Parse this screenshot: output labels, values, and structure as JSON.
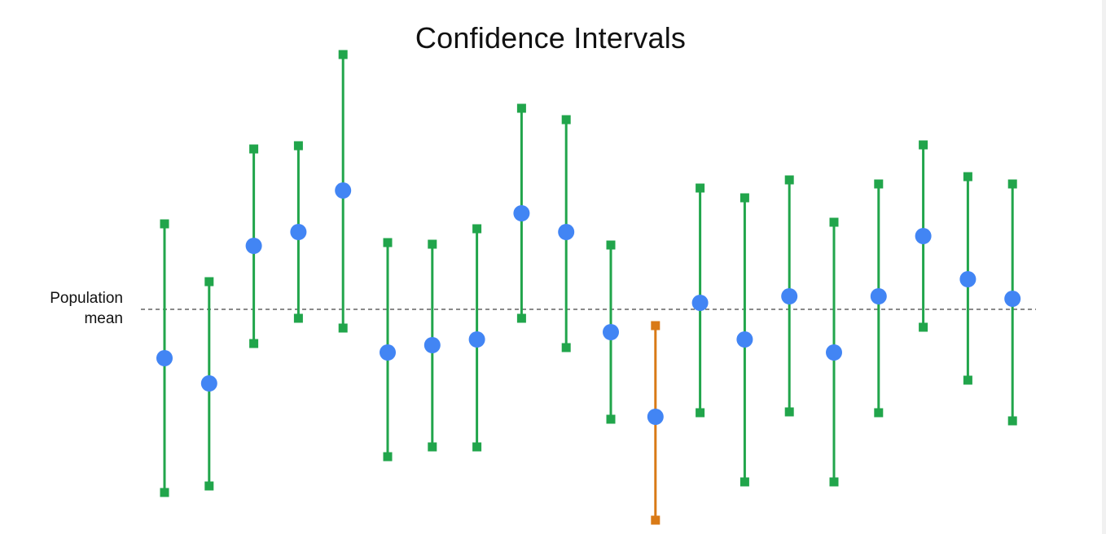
{
  "chart_data": {
    "type": "scatter",
    "title": "Confidence Intervals",
    "xlabel": "",
    "ylabel": "",
    "reference_line": {
      "label_line1": "Population",
      "label_line2": "mean",
      "value": 0,
      "style": "dashed",
      "color": "#444444"
    },
    "grid": false,
    "legend": "none",
    "colors": {
      "interval": "#21a54b",
      "interval_miss": "#d97a17",
      "point": "#4285f4"
    },
    "samples": [
      {
        "estimate": -0.6,
        "lower": -2.25,
        "upper": 1.05,
        "contains_mean": true
      },
      {
        "estimate": -0.91,
        "lower": -2.17,
        "upper": 0.34,
        "contains_mean": true
      },
      {
        "estimate": 0.78,
        "lower": -0.42,
        "upper": 1.97,
        "contains_mean": true
      },
      {
        "estimate": 0.95,
        "lower": -0.11,
        "upper": 2.01,
        "contains_mean": true
      },
      {
        "estimate": 1.46,
        "lower": -0.23,
        "upper": 3.13,
        "contains_mean": true
      },
      {
        "estimate": -0.53,
        "lower": -1.81,
        "upper": 0.82,
        "contains_mean": true
      },
      {
        "estimate": -0.44,
        "lower": -1.69,
        "upper": 0.8,
        "contains_mean": true
      },
      {
        "estimate": -0.37,
        "lower": -1.69,
        "upper": 0.99,
        "contains_mean": true
      },
      {
        "estimate": 1.18,
        "lower": -0.11,
        "upper": 2.47,
        "contains_mean": true
      },
      {
        "estimate": 0.95,
        "lower": -0.47,
        "upper": 2.33,
        "contains_mean": true
      },
      {
        "estimate": -0.28,
        "lower": -1.35,
        "upper": 0.79,
        "contains_mean": true
      },
      {
        "estimate": -1.32,
        "lower": -2.59,
        "upper": -0.2,
        "contains_mean": false
      },
      {
        "estimate": 0.08,
        "lower": -1.27,
        "upper": 1.49,
        "contains_mean": true
      },
      {
        "estimate": -0.37,
        "lower": -2.12,
        "upper": 1.37,
        "contains_mean": true
      },
      {
        "estimate": 0.16,
        "lower": -1.26,
        "upper": 1.59,
        "contains_mean": true
      },
      {
        "estimate": -0.53,
        "lower": -2.12,
        "upper": 1.07,
        "contains_mean": true
      },
      {
        "estimate": 0.16,
        "lower": -1.27,
        "upper": 1.54,
        "contains_mean": true
      },
      {
        "estimate": 0.9,
        "lower": -0.22,
        "upper": 2.02,
        "contains_mean": true
      },
      {
        "estimate": 0.37,
        "lower": -0.87,
        "upper": 1.63,
        "contains_mean": true
      },
      {
        "estimate": 0.13,
        "lower": -1.37,
        "upper": 1.54,
        "contains_mean": true
      }
    ]
  }
}
